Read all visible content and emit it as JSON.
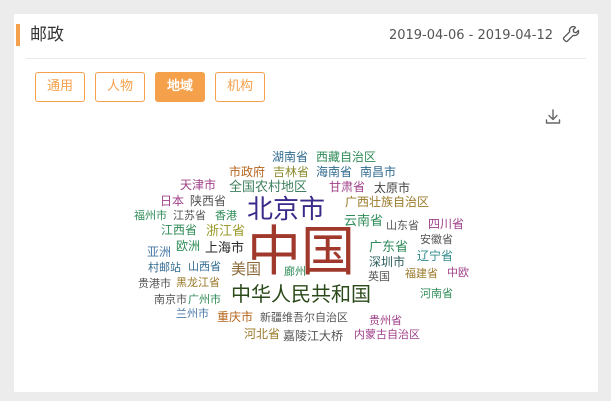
{
  "header": {
    "title": "邮政",
    "date_range": "2019-04-06 - 2019-04-12",
    "settings_icon": "wrench-icon"
  },
  "tabs": [
    {
      "label": "通用",
      "active": false
    },
    {
      "label": "人物",
      "active": false
    },
    {
      "label": "地域",
      "active": true
    },
    {
      "label": "机构",
      "active": false
    }
  ],
  "toolbar": {
    "download_icon": "download-icon"
  },
  "colors": {
    "accent": "#f5a04a"
  },
  "word_cloud": {
    "words": [
      {
        "text": "湖南省",
        "color": "#2f6a8f"
      },
      {
        "text": "西藏自治区",
        "color": "#2e8b57"
      },
      {
        "text": "市政府",
        "color": "#b5651d"
      },
      {
        "text": "吉林省",
        "color": "#8b8b2e"
      },
      {
        "text": "海南省",
        "color": "#2f6a8f"
      },
      {
        "text": "南昌市",
        "color": "#2f6a8f"
      },
      {
        "text": "天津市",
        "color": "#a0408a"
      },
      {
        "text": "全国农村地区",
        "color": "#3f7f5f"
      },
      {
        "text": "甘肃省",
        "color": "#a0408a"
      },
      {
        "text": "太原市",
        "color": "#444444"
      },
      {
        "text": "日本",
        "color": "#a0408a"
      },
      {
        "text": "陕西省",
        "color": "#555555"
      },
      {
        "text": "广西壮族自治区",
        "color": "#9a7a2a"
      },
      {
        "text": "福州市",
        "color": "#2e8b57"
      },
      {
        "text": "江苏省",
        "color": "#555555"
      },
      {
        "text": "香港",
        "color": "#2e8b57"
      },
      {
        "text": "北京市",
        "color": "#3a2a8a"
      },
      {
        "text": "云南省",
        "color": "#2e8b57"
      },
      {
        "text": "山东省",
        "color": "#555555"
      },
      {
        "text": "四川省",
        "color": "#a0408a"
      },
      {
        "text": "江西省",
        "color": "#2e8b57"
      },
      {
        "text": "浙江省",
        "color": "#9a9a2a"
      },
      {
        "text": "广东省",
        "color": "#2e8b57"
      },
      {
        "text": "安徽省",
        "color": "#555555"
      },
      {
        "text": "亚洲",
        "color": "#4a7aa8"
      },
      {
        "text": "欧洲",
        "color": "#2e8b57"
      },
      {
        "text": "上海市",
        "color": "#2a2a2a"
      },
      {
        "text": "中国",
        "color": "#a0392b"
      },
      {
        "text": "深圳市",
        "color": "#2e5e5e"
      },
      {
        "text": "辽宁省",
        "color": "#2f8a8a"
      },
      {
        "text": "村邮站",
        "color": "#2f6a8f"
      },
      {
        "text": "山西省",
        "color": "#2f6a8f"
      },
      {
        "text": "美国",
        "color": "#8b6a3a"
      },
      {
        "text": "廊州",
        "color": "#2e8b57"
      },
      {
        "text": "英国",
        "color": "#555555"
      },
      {
        "text": "福建省",
        "color": "#9a7a2a"
      },
      {
        "text": "中欧",
        "color": "#a0408a"
      },
      {
        "text": "贵港市",
        "color": "#555555"
      },
      {
        "text": "黑龙江省",
        "color": "#9a7a2a"
      },
      {
        "text": "中华人民共和国",
        "color": "#2a4a1a"
      },
      {
        "text": "河南省",
        "color": "#2e8b57"
      },
      {
        "text": "南京市",
        "color": "#555555"
      },
      {
        "text": "广州市",
        "color": "#2e8b57"
      },
      {
        "text": "兰州市",
        "color": "#4a7aa8"
      },
      {
        "text": "重庆市",
        "color": "#b5651d"
      },
      {
        "text": "新疆维吾尔自治区",
        "color": "#555555"
      },
      {
        "text": "贵州省",
        "color": "#a0408a"
      },
      {
        "text": "河北省",
        "color": "#9a7a2a"
      },
      {
        "text": "嘉陵江大桥",
        "color": "#555555"
      },
      {
        "text": "内蒙古自治区",
        "color": "#a0408a"
      }
    ]
  }
}
